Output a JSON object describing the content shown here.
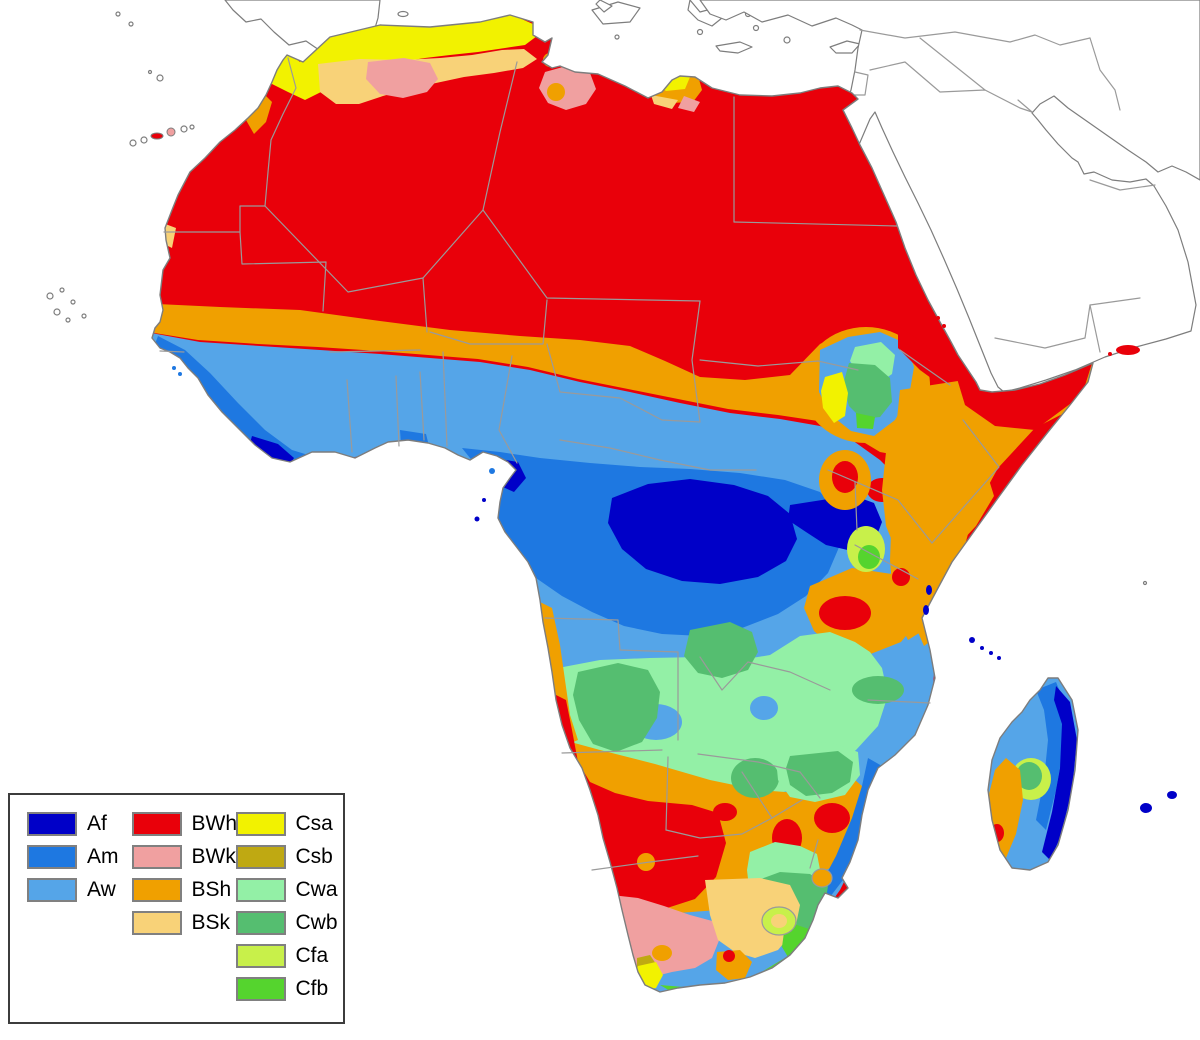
{
  "legend": {
    "columns": [
      {
        "items": [
          {
            "code": "Af",
            "color": "#0000C8"
          },
          {
            "code": "Am",
            "color": "#1E78E1"
          },
          {
            "code": "Aw",
            "color": "#55A5E8"
          }
        ]
      },
      {
        "items": [
          {
            "code": "BWh",
            "color": "#E9000A"
          },
          {
            "code": "BWk",
            "color": "#F0A0A0"
          },
          {
            "code": "BSh",
            "color": "#F0A000"
          },
          {
            "code": "BSk",
            "color": "#F8D278"
          }
        ]
      },
      {
        "items": [
          {
            "code": "Csa",
            "color": "#F2F200"
          },
          {
            "code": "Csb",
            "color": "#BFA912"
          },
          {
            "code": "Cwa",
            "color": "#93F0A6"
          },
          {
            "code": "Cwb",
            "color": "#55BE70"
          },
          {
            "code": "Cfa",
            "color": "#C8F04A"
          },
          {
            "code": "Cfb",
            "color": "#55D42E"
          }
        ]
      }
    ]
  },
  "map_colors": {
    "ocean": "#FFFFFF",
    "land_fill": "#FFFFFF",
    "coastline": "#7D7D7D",
    "country_border": "#9A9A9A",
    "legend_border": "#3C3C3C"
  }
}
